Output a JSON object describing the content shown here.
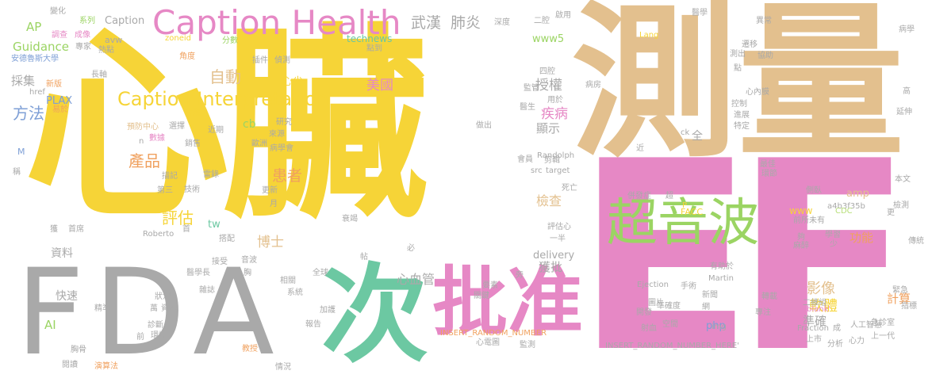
{
  "palette": {
    "yellow": "#f6d437",
    "tan": "#e3c08e",
    "pink": "#e688c5",
    "gray": "#a9a9a9",
    "teal": "#6cc8a2",
    "green": "#9bd463",
    "orange": "#f0a15f",
    "blue": "#7e9fd6",
    "light_green": "#b8df7a"
  },
  "words": [
    {
      "text": "心臟",
      "color": "yellow"
    },
    {
      "text": "測量",
      "color": "tan"
    },
    {
      "text": "EF",
      "color": "pink"
    },
    {
      "text": "FDA",
      "color": "gray"
    },
    {
      "text": "次",
      "color": "teal"
    },
    {
      "text": "批准",
      "color": "pink"
    },
    {
      "text": "超音波",
      "color": "green"
    },
    {
      "text": "Caption Health",
      "color": "pink"
    },
    {
      "text": "Caption Interpretation",
      "color": "yellow"
    },
    {
      "text": "武漢",
      "color": "gray"
    },
    {
      "text": "肺炎",
      "color": "gray"
    },
    {
      "text": "自動",
      "color": "tan"
    },
    {
      "text": "方法",
      "color": "blue"
    },
    {
      "text": "產品",
      "color": "orange"
    },
    {
      "text": "評估",
      "color": "yellow"
    },
    {
      "text": "患者",
      "color": "orange"
    },
    {
      "text": "影像",
      "color": "tan"
    },
    {
      "text": "軟體",
      "color": "yellow"
    },
    {
      "text": "美國",
      "color": "pink"
    },
    {
      "text": "授權",
      "color": "gray"
    },
    {
      "text": "疾病",
      "color": "pink"
    },
    {
      "text": "博士",
      "color": "tan"
    },
    {
      "text": "檢查",
      "color": "tan"
    },
    {
      "text": "獲批",
      "color": "gray"
    },
    {
      "text": "心血管",
      "color": "gray"
    },
    {
      "text": "準確",
      "color": "gray"
    },
    {
      "text": "計算",
      "color": "orange"
    },
    {
      "text": "功能",
      "color": "orange"
    },
    {
      "text": "顯示",
      "color": "gray"
    },
    {
      "text": "心尖",
      "color": "yellow"
    },
    {
      "text": "採集",
      "color": "gray"
    },
    {
      "text": "Guidance",
      "color": "green"
    },
    {
      "text": "AP",
      "color": "green"
    },
    {
      "text": "PLAX",
      "color": "blue"
    },
    {
      "text": "資料",
      "color": "gray"
    },
    {
      "text": "快速",
      "color": "gray"
    },
    {
      "text": "AI",
      "color": "green"
    },
    {
      "text": "Caption",
      "color": "gray"
    },
    {
      "text": "www5",
      "color": "green"
    },
    {
      "text": "technews",
      "color": "teal"
    },
    {
      "text": "delivery",
      "color": "gray"
    },
    {
      "text": "php",
      "color": "blue"
    },
    {
      "text": "amp",
      "color": "tan"
    },
    {
      "text": "www",
      "color": "yellow"
    },
    {
      "text": "cb",
      "color": "green"
    },
    {
      "text": "tw",
      "color": "teal"
    },
    {
      "text": "Randolph",
      "color": "gray"
    },
    {
      "text": "Ejection",
      "color": "gray"
    },
    {
      "text": "Fraction",
      "color": "gray"
    },
    {
      "text": "Martin",
      "color": "gray"
    },
    {
      "text": "Roberto",
      "color": "gray"
    },
    {
      "text": "a4b3f35b",
      "color": "gray"
    },
    {
      "text": "FACC",
      "color": "yellow"
    },
    {
      "text": "CDC",
      "color": "light_green"
    },
    {
      "text": "INSERT_RANDOM_NUMBER",
      "color": "orange"
    },
    {
      "text": "INSERT_RANDOM_NUMBER_HERE'",
      "color": "gray"
    },
    {
      "text": "_blank'",
      "color": "pink"
    },
    {
      "text": "img",
      "color": "gray"
    },
    {
      "text": "src",
      "color": "gray"
    },
    {
      "text": "target",
      "color": "gray"
    },
    {
      "text": "href",
      "color": "gray"
    },
    {
      "text": "zoneid",
      "color": "yellow"
    },
    {
      "text": "Lang",
      "color": "yellow"
    },
    {
      "text": "avw",
      "color": "gray"
    },
    {
      "text": "ck",
      "color": "gray"
    },
    {
      "text": "M",
      "color": "blue"
    },
    {
      "text": "n",
      "color": "gray"
    },
    {
      "text": "P",
      "color": "yellow"
    },
    {
      "text": "全",
      "color": "gray"
    },
    {
      "text": "變化",
      "color": "gray"
    },
    {
      "text": "系列",
      "color": "green"
    },
    {
      "text": "分數",
      "color": "green"
    },
    {
      "text": "偵測",
      "color": "gray"
    },
    {
      "text": "插件",
      "color": "gray"
    },
    {
      "text": "點到",
      "color": "gray"
    },
    {
      "text": "角度",
      "color": "orange"
    },
    {
      "text": "長軸",
      "color": "gray"
    },
    {
      "text": "新版",
      "color": "orange"
    },
    {
      "text": "易於",
      "color": "orange"
    },
    {
      "text": "調查",
      "color": "pink"
    },
    {
      "text": "成像",
      "color": "pink"
    },
    {
      "text": "專家",
      "color": "gray"
    },
    {
      "text": "熱點",
      "color": "gray"
    },
    {
      "text": "安德魯斯大學",
      "color": "blue"
    },
    {
      "text": "片段",
      "color": "yellow"
    },
    {
      "text": "預防中心",
      "color": "tan"
    },
    {
      "text": "選擇",
      "color": "gray"
    },
    {
      "text": "數據",
      "color": "pink"
    },
    {
      "text": "銷售",
      "color": "gray"
    },
    {
      "text": "近期",
      "color": "gray"
    },
    {
      "text": "研究",
      "color": "gray"
    },
    {
      "text": "來源",
      "color": "gray"
    },
    {
      "text": "歐洲",
      "color": "gray"
    },
    {
      "text": "病學會",
      "color": "gray"
    },
    {
      "text": "描記",
      "color": "gray"
    },
    {
      "text": "雷錄",
      "color": "gray"
    },
    {
      "text": "第三",
      "color": "gray"
    },
    {
      "text": "技術",
      "color": "gray"
    },
    {
      "text": "更新",
      "color": "gray"
    },
    {
      "text": "月",
      "color": "gray"
    },
    {
      "text": "獲",
      "color": "gray"
    },
    {
      "text": "首席",
      "color": "gray"
    },
    {
      "text": "首",
      "color": "gray"
    },
    {
      "text": "搭配",
      "color": "gray"
    },
    {
      "text": "接受",
      "color": "gray"
    },
    {
      "text": "音波",
      "color": "gray"
    },
    {
      "text": "胸",
      "color": "gray"
    },
    {
      "text": "醫學長",
      "color": "gray"
    },
    {
      "text": "狀況",
      "color": "gray"
    },
    {
      "text": "萬",
      "color": "gray"
    },
    {
      "text": "資源",
      "color": "gray"
    },
    {
      "text": "雜誌",
      "color": "gray"
    },
    {
      "text": "診斷",
      "color": "gray"
    },
    {
      "text": "前",
      "color": "gray"
    },
    {
      "text": "環境",
      "color": "gray"
    },
    {
      "text": "精準",
      "color": "gray"
    },
    {
      "text": "胸骨",
      "color": "gray"
    },
    {
      "text": "閱讀",
      "color": "gray"
    },
    {
      "text": "演算法",
      "color": "orange"
    },
    {
      "text": "教授",
      "color": "orange"
    },
    {
      "text": "情況",
      "color": "gray"
    },
    {
      "text": "報告",
      "color": "gray"
    },
    {
      "text": "加護",
      "color": "gray"
    },
    {
      "text": "系統",
      "color": "gray"
    },
    {
      "text": "相關",
      "color": "gray"
    },
    {
      "text": "全球",
      "color": "gray"
    },
    {
      "text": "衰竭",
      "color": "gray"
    },
    {
      "text": "帖",
      "color": "gray"
    },
    {
      "text": "必",
      "color": "gray"
    },
    {
      "text": "關鍵",
      "color": "gray"
    },
    {
      "text": "要素",
      "color": "gray"
    },
    {
      "text": "心電圖",
      "color": "gray"
    },
    {
      "text": "監測",
      "color": "gray"
    },
    {
      "text": "旁",
      "color": "gray"
    },
    {
      "text": "二腔",
      "color": "gray"
    },
    {
      "text": "深度",
      "color": "gray"
    },
    {
      "text": "啟用",
      "color": "gray"
    },
    {
      "text": "四腔",
      "color": "gray"
    },
    {
      "text": "監管",
      "color": "gray"
    },
    {
      "text": "用於",
      "color": "gray"
    },
    {
      "text": "醫生",
      "color": "gray"
    },
    {
      "text": "做出",
      "color": "gray"
    },
    {
      "text": "剪輯",
      "color": "gray"
    },
    {
      "text": "會員",
      "color": "gray"
    },
    {
      "text": "死亡",
      "color": "gray"
    },
    {
      "text": "評估心",
      "color": "gray"
    },
    {
      "text": "一半",
      "color": "gray"
    },
    {
      "text": "病房",
      "color": "gray"
    },
    {
      "text": "併發症",
      "color": "gray"
    },
    {
      "text": "超",
      "color": "gray"
    },
    {
      "text": "手術",
      "color": "gray"
    },
    {
      "text": "新聞",
      "color": "gray"
    },
    {
      "text": "網",
      "color": "gray"
    },
    {
      "text": "圖片",
      "color": "gray"
    },
    {
      "text": "準確度",
      "color": "gray"
    },
    {
      "text": "開發",
      "color": "gray"
    },
    {
      "text": "射血",
      "color": "gray"
    },
    {
      "text": "空間",
      "color": "gray"
    },
    {
      "text": "轉載",
      "color": "gray"
    },
    {
      "text": "二維組",
      "color": "gray"
    },
    {
      "text": "專注",
      "color": "gray"
    },
    {
      "text": "成",
      "color": "gray"
    },
    {
      "text": "人工智慧",
      "color": "gray"
    },
    {
      "text": "上市",
      "color": "gray"
    },
    {
      "text": "分析",
      "color": "gray"
    },
    {
      "text": "心力",
      "color": "gray"
    },
    {
      "text": "上一代",
      "color": "gray"
    },
    {
      "text": "急診室",
      "color": "gray"
    },
    {
      "text": "指標",
      "color": "gray"
    },
    {
      "text": "緊急",
      "color": "gray"
    },
    {
      "text": "傳統",
      "color": "gray"
    },
    {
      "text": "檢測",
      "color": "gray"
    },
    {
      "text": "本文",
      "color": "gray"
    },
    {
      "text": "側臥",
      "color": "gray"
    },
    {
      "text": "最佳",
      "color": "gray"
    },
    {
      "text": "環節",
      "color": "gray"
    },
    {
      "text": "近",
      "color": "gray"
    },
    {
      "text": "特定",
      "color": "gray"
    },
    {
      "text": "心內膜",
      "color": "gray"
    },
    {
      "text": "控制",
      "color": "gray"
    },
    {
      "text": "進展",
      "color": "gray"
    },
    {
      "text": "醫學",
      "color": "gray"
    },
    {
      "text": "測出",
      "color": "gray"
    },
    {
      "text": "協助",
      "color": "gray"
    },
    {
      "text": "遷移",
      "color": "gray"
    },
    {
      "text": "點",
      "color": "gray"
    },
    {
      "text": "病學",
      "color": "gray"
    },
    {
      "text": "異常",
      "color": "gray"
    },
    {
      "text": "高",
      "color": "gray"
    },
    {
      "text": "延伸",
      "color": "gray"
    },
    {
      "text": "前所未有",
      "color": "gray"
    },
    {
      "text": "更",
      "color": "gray"
    },
    {
      "text": "學習",
      "color": "gray"
    },
    {
      "text": "少",
      "color": "gray"
    },
    {
      "text": "夠",
      "color": "gray"
    },
    {
      "text": "麻醉",
      "color": "gray"
    },
    {
      "text": "有助於",
      "color": "gray"
    },
    {
      "text": "稱",
      "color": "gray"
    }
  ]
}
